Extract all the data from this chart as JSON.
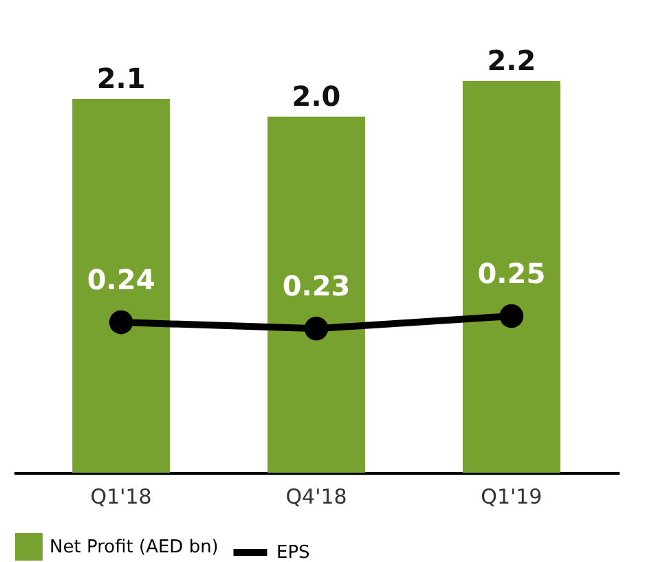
{
  "chart_data": {
    "type": "bar",
    "categories": [
      "Q1'18",
      "Q4'18",
      "Q1'19"
    ],
    "series": [
      {
        "name": "Net Profit (AED bn)",
        "color": "#78a22f",
        "values": [
          2.1,
          2.0,
          2.2
        ],
        "value_labels": [
          "2.1",
          "2.0",
          "2.2"
        ]
      },
      {
        "name": "EPS",
        "type": "line",
        "axis": "y2",
        "color": "#000000",
        "values": [
          0.24,
          0.23,
          0.25
        ],
        "marker": "circle",
        "line_style": "solid"
      }
    ],
    "data_labels": true,
    "grid": false,
    "legend": "bottom"
  }
}
